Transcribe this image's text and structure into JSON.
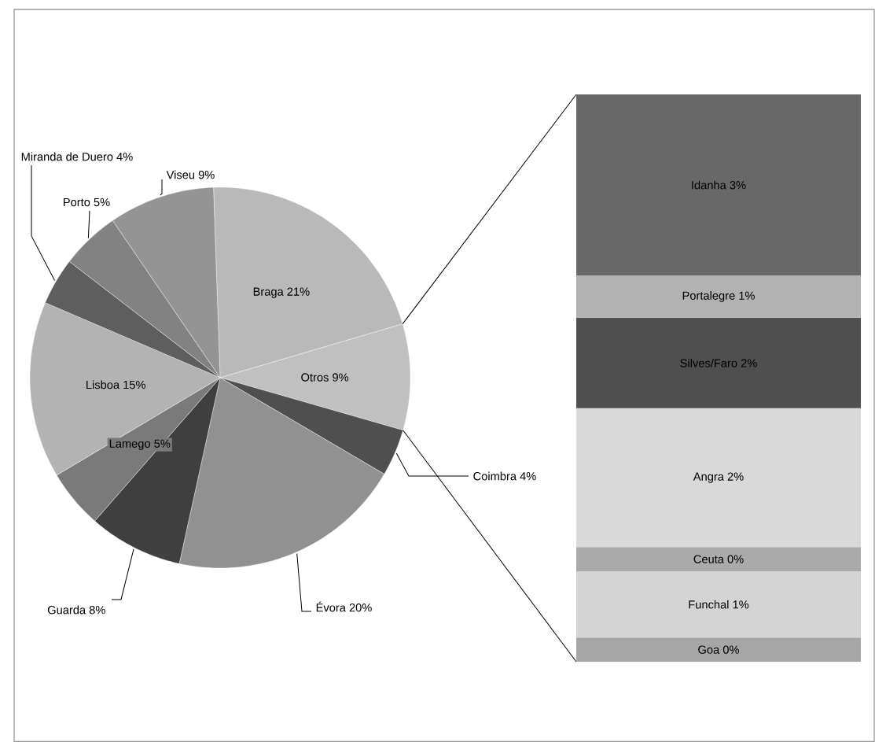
{
  "chart_data": [
    {
      "type": "pie",
      "categories": [
        "Braga",
        "Otros",
        "Coimbra",
        "Évora",
        "Guarda",
        "Lamego",
        "Lisboa",
        "Miranda de Duero",
        "Porto",
        "Viseu"
      ],
      "values": [
        21,
        9,
        4,
        20,
        8,
        5,
        15,
        4,
        5,
        9
      ],
      "value_labels": [
        "21%",
        "9%",
        "4%",
        "20%",
        "8%",
        "5%",
        "15%",
        "4%",
        "5%",
        "9%"
      ],
      "colors": [
        "#b9b9b9",
        "#c0c0c0",
        "#4f4f4f",
        "#919191",
        "#3f3f3f",
        "#7a7a7a",
        "#b3b3b3",
        "#5e5e5e",
        "#828282",
        "#949494"
      ]
    },
    {
      "type": "bar",
      "stacked": true,
      "categories": [
        null
      ],
      "series": [
        {
          "name": "Goa",
          "color": "#a6a6a6",
          "values": [
            0.4
          ],
          "value_labels": [
            "0%"
          ]
        },
        {
          "name": "Funchal",
          "color": "#d4d4d4",
          "values": [
            1.1
          ],
          "value_labels": [
            "1%"
          ]
        },
        {
          "name": "Ceuta",
          "color": "#aaaaaa",
          "values": [
            0.4
          ],
          "value_labels": [
            "0%"
          ]
        },
        {
          "name": "Angra",
          "color": "#d9d9d9",
          "values": [
            2.3
          ],
          "value_labels": [
            "2%"
          ]
        },
        {
          "name": "Silves/Faro",
          "color": "#4f4f4f",
          "values": [
            1.5
          ],
          "value_labels": [
            "2%"
          ]
        },
        {
          "name": "Portalegre",
          "color": "#b2b2b2",
          "values": [
            0.7
          ],
          "value_labels": [
            "1%"
          ]
        },
        {
          "name": "Idanha",
          "color": "#686868",
          "values": [
            3.0
          ],
          "value_labels": [
            "3%"
          ]
        }
      ]
    }
  ]
}
